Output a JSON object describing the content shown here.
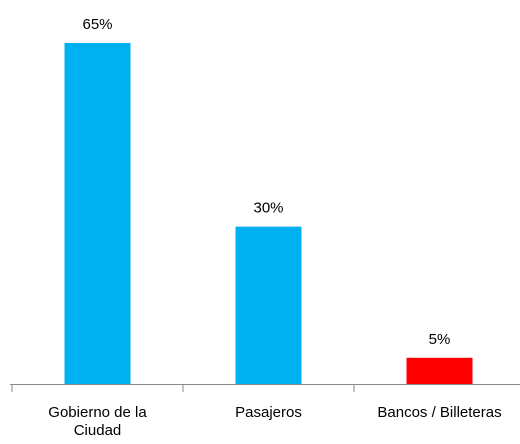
{
  "chart_data": {
    "type": "bar",
    "categories": [
      "Gobierno de la Ciudad",
      "Pasajeros",
      "Bancos / Billeteras"
    ],
    "values": [
      65,
      30,
      5
    ],
    "value_labels": [
      "65%",
      "30%",
      "5%"
    ],
    "colors": [
      "#00b0f0",
      "#00b0f0",
      "#ff0000"
    ]
  }
}
